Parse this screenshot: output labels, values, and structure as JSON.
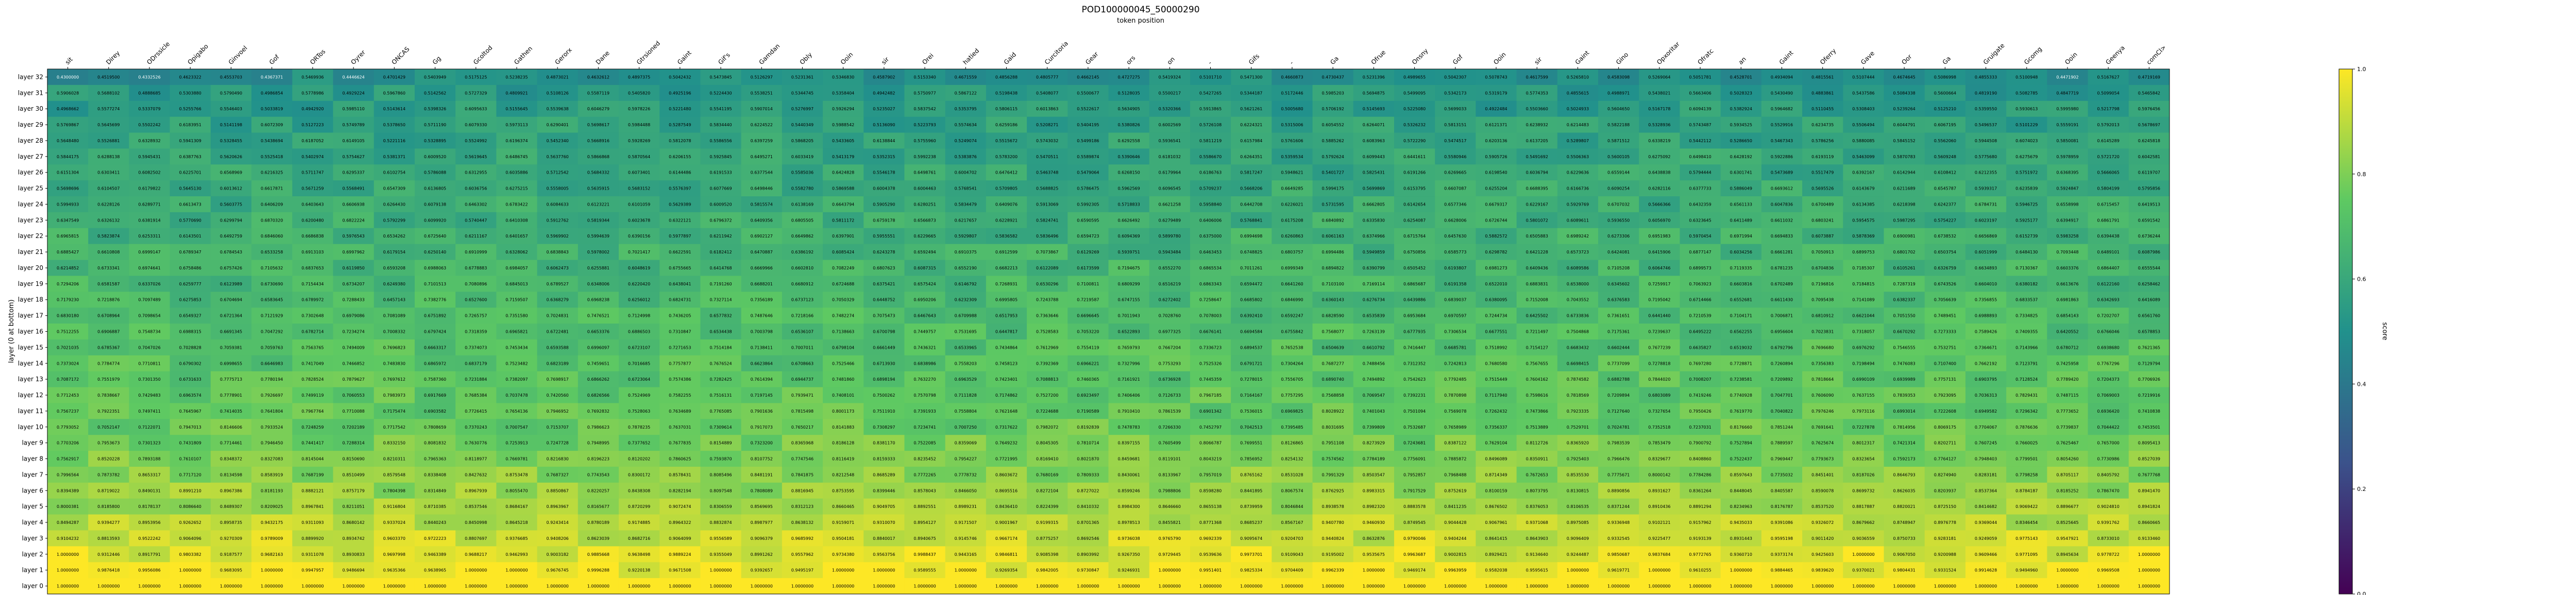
{
  "chart_data": {
    "type": "heatmap",
    "title": "POD100000045_50000290",
    "subtitle": "token position",
    "ylabel": "layer (0 at bottom)",
    "colorbar": {
      "label": "score",
      "range": [
        0.0,
        1.0
      ],
      "ticks": [
        "0.0",
        "0.2",
        "0.4",
        "0.6",
        "0.8",
        "1.0"
      ],
      "colormap": [
        "#440154",
        "#3b528b",
        "#21918c",
        "#5ec962",
        "#fde725"
      ]
    },
    "x_tokens": [
      "sit",
      "Direy",
      "ODrssicle",
      "Opigabo",
      "Ginvoel",
      "Gof",
      "ORTos",
      "Oyrer",
      "ONCAS",
      "Gg",
      "Gcoltod",
      "Gathen",
      "Gerorx",
      "Dane",
      "Gtrsioned",
      "Gaint",
      "Gif's",
      "Gamdan",
      "Obly",
      "Ooin",
      "sir",
      "Orei",
      "hatied",
      "Gaid",
      "Curcitoria",
      "Gear",
      "ors",
      "on",
      "-",
      "Gifs",
      "-",
      "Ga",
      "Ofrue",
      "Onsny",
      "Gof",
      "Ooin",
      "sir",
      "Gaint",
      "Gino",
      "Opxoritar",
      "Ofratc",
      "an",
      "Gaint",
      "Oferry",
      "Gave",
      "Oor",
      "Ga",
      "Gruigate",
      "Gcomg",
      "Ooin",
      "Geenya",
      "comCl>"
    ],
    "y_layers": [
      "layer 32",
      "layer 31",
      "layer 30",
      "layer 29",
      "layer 28",
      "layer 27",
      "layer 26",
      "layer 25",
      "layer 24",
      "layer 23",
      "layer 22",
      "layer 21",
      "layer 20",
      "layer 19",
      "layer 18",
      "layer 17",
      "layer 16",
      "layer 15",
      "layer 14",
      "layer 13",
      "layer 12",
      "layer 11",
      "layer 10",
      "layer 9",
      "layer 8",
      "layer 7",
      "layer 6",
      "layer 5",
      "layer 4",
      "layer 3",
      "layer 2",
      "layer 1",
      "layer 0"
    ],
    "layer_means": [
      0.49,
      0.54,
      0.55,
      0.57,
      0.58,
      0.59,
      0.6,
      0.61,
      0.62,
      0.63,
      0.64,
      0.65,
      0.66,
      0.67,
      0.68,
      0.69,
      0.7,
      0.71,
      0.72,
      0.73,
      0.74,
      0.75,
      0.76,
      0.78,
      0.8,
      0.82,
      0.84,
      0.86,
      0.89,
      0.92,
      0.95,
      0.98,
      1.0
    ]
  }
}
